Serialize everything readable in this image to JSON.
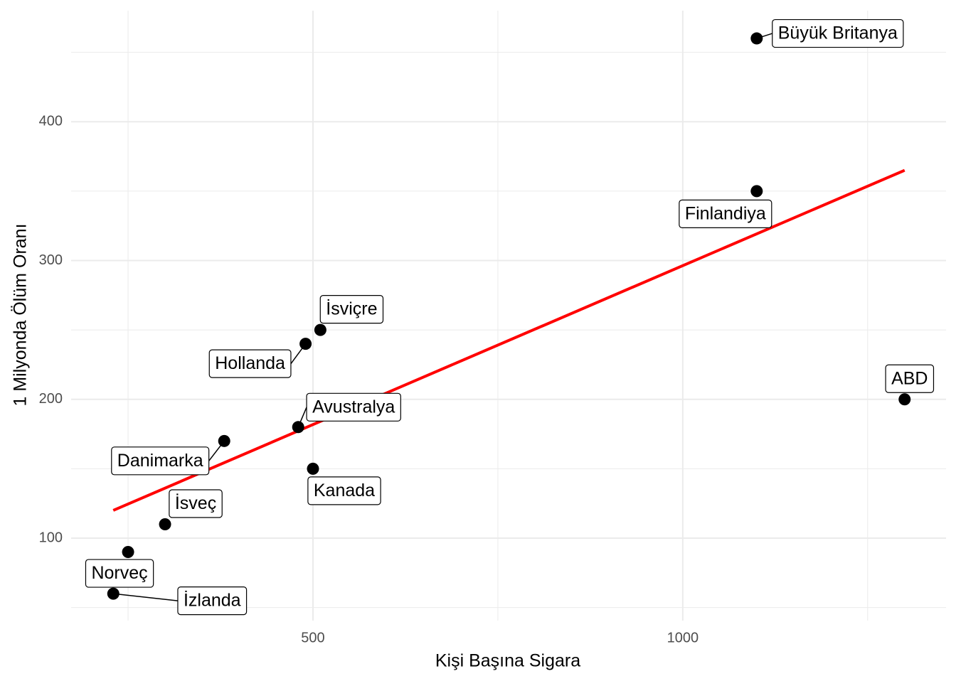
{
  "chart_data": {
    "type": "scatter",
    "x_label": "Kişi Başına Sigara",
    "y_label": "1 Milyonda Ölüm Oranı",
    "labels": [
      "İzlanda",
      "Norveç",
      "İsveç",
      "Danimarka",
      "Avustralya",
      "Kanada",
      "Hollanda",
      "İsviçre",
      "Finlandiya",
      "Büyük Britanya",
      "ABD"
    ],
    "x": [
      230,
      250,
      300,
      380,
      480,
      500,
      490,
      510,
      1100,
      1100,
      1300
    ],
    "y": [
      60,
      90,
      110,
      170,
      180,
      150,
      240,
      250,
      350,
      460,
      200
    ],
    "color": "#000000",
    "trend_line": {
      "x": [
        230,
        1300
      ],
      "y": [
        120,
        365
      ],
      "color": "#ff0000"
    },
    "xlim": [
      173,
      1356
    ],
    "ylim": [
      40.6,
      480
    ],
    "xticks": [
      500,
      1000
    ],
    "yticks": [
      100,
      200,
      300,
      400
    ],
    "minor_xticks": [
      250,
      750,
      1250
    ],
    "minor_yticks": [
      50,
      150,
      250,
      350,
      450
    ],
    "grid": true
  }
}
